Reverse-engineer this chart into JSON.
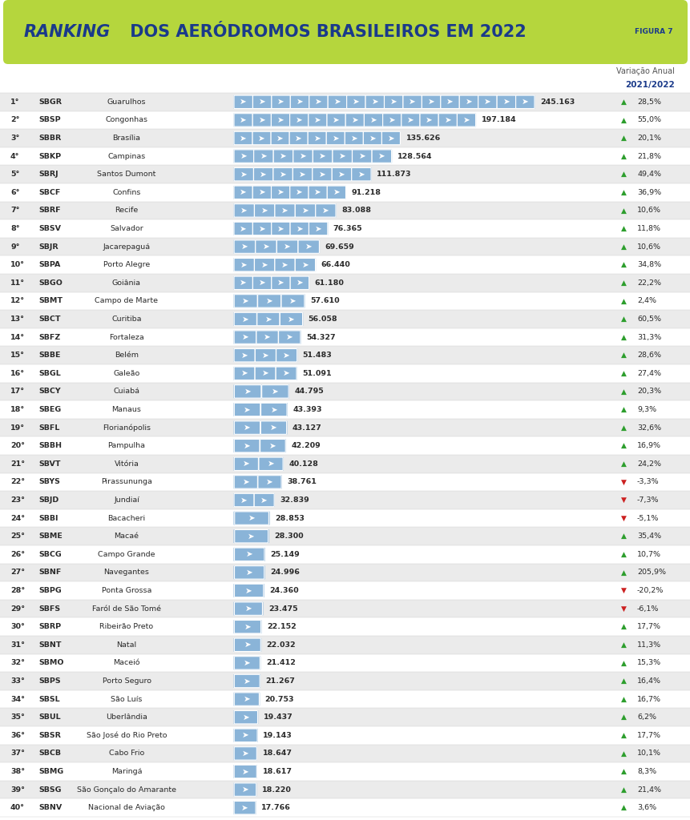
{
  "title_italic": "RANKING",
  "title_rest": "DOS AERÓDROMOS BRASILEIROS EM 2022",
  "figura": "FIGURA 7",
  "header_bg": "#b5d63d",
  "header_text_color": "#1a3a8a",
  "bg_color": "#ffffff",
  "row_alt_color": "#ebebeb",
  "row_color": "#ffffff",
  "bar_color": "#8ab4d8",
  "bar_border_color": "#ffffff",
  "var_header": "Variação Anual",
  "var_subheader": "2021/2022",
  "var_subheader_color": "#1a3a8a",
  "rows": [
    {
      "rank": "1°",
      "code": "SBGR",
      "name": "Guarulhos",
      "value": 245163,
      "val_str": "245.163",
      "var": "28,5%",
      "up": true
    },
    {
      "rank": "2°",
      "code": "SBSP",
      "name": "Congonhas",
      "value": 197184,
      "val_str": "197.184",
      "var": "55,0%",
      "up": true
    },
    {
      "rank": "3°",
      "code": "SBBR",
      "name": "Brasília",
      "value": 135626,
      "val_str": "135.626",
      "var": "20,1%",
      "up": true
    },
    {
      "rank": "4°",
      "code": "SBKP",
      "name": "Campinas",
      "value": 128564,
      "val_str": "128.564",
      "var": "21,8%",
      "up": true
    },
    {
      "rank": "5°",
      "code": "SBRJ",
      "name": "Santos Dumont",
      "value": 111873,
      "val_str": "111.873",
      "var": "49,4%",
      "up": true
    },
    {
      "rank": "6°",
      "code": "SBCF",
      "name": "Confins",
      "value": 91218,
      "val_str": "91.218",
      "var": "36,9%",
      "up": true
    },
    {
      "rank": "7°",
      "code": "SBRF",
      "name": "Recife",
      "value": 83088,
      "val_str": "83.088",
      "var": "10,6%",
      "up": true
    },
    {
      "rank": "8°",
      "code": "SBSV",
      "name": "Salvador",
      "value": 76365,
      "val_str": "76.365",
      "var": "11,8%",
      "up": true
    },
    {
      "rank": "9°",
      "code": "SBJR",
      "name": "Jacarepaguá",
      "value": 69659,
      "val_str": "69.659",
      "var": "10,6%",
      "up": true
    },
    {
      "rank": "10°",
      "code": "SBPA",
      "name": "Porto Alegre",
      "value": 66440,
      "val_str": "66.440",
      "var": "34,8%",
      "up": true
    },
    {
      "rank": "11°",
      "code": "SBGO",
      "name": "Goiânia",
      "value": 61180,
      "val_str": "61.180",
      "var": "22,2%",
      "up": true
    },
    {
      "rank": "12°",
      "code": "SBMT",
      "name": "Campo de Marte",
      "value": 57610,
      "val_str": "57.610",
      "var": "2,4%",
      "up": true
    },
    {
      "rank": "13°",
      "code": "SBCT",
      "name": "Curitiba",
      "value": 56058,
      "val_str": "56.058",
      "var": "60,5%",
      "up": true
    },
    {
      "rank": "14°",
      "code": "SBFZ",
      "name": "Fortaleza",
      "value": 54327,
      "val_str": "54.327",
      "var": "31,3%",
      "up": true
    },
    {
      "rank": "15°",
      "code": "SBBE",
      "name": "Belém",
      "value": 51483,
      "val_str": "51.483",
      "var": "28,6%",
      "up": true
    },
    {
      "rank": "16°",
      "code": "SBGL",
      "name": "Galeão",
      "value": 51091,
      "val_str": "51.091",
      "var": "27,4%",
      "up": true
    },
    {
      "rank": "17°",
      "code": "SBCY",
      "name": "Cuiabá",
      "value": 44795,
      "val_str": "44.795",
      "var": "20,3%",
      "up": true
    },
    {
      "rank": "18°",
      "code": "SBEG",
      "name": "Manaus",
      "value": 43393,
      "val_str": "43.393",
      "var": "9,3%",
      "up": true
    },
    {
      "rank": "19°",
      "code": "SBFL",
      "name": "Florianópolis",
      "value": 43127,
      "val_str": "43.127",
      "var": "32,6%",
      "up": true
    },
    {
      "rank": "20°",
      "code": "SBBH",
      "name": "Pampulha",
      "value": 42209,
      "val_str": "42.209",
      "var": "16,9%",
      "up": true
    },
    {
      "rank": "21°",
      "code": "SBVT",
      "name": "Vitória",
      "value": 40128,
      "val_str": "40.128",
      "var": "24,2%",
      "up": true
    },
    {
      "rank": "22°",
      "code": "SBYS",
      "name": "Pirassununga",
      "value": 38761,
      "val_str": "38.761",
      "var": "-3,3%",
      "up": false
    },
    {
      "rank": "23°",
      "code": "SBJD",
      "name": "Jundiaí",
      "value": 32839,
      "val_str": "32.839",
      "var": "-7,3%",
      "up": false
    },
    {
      "rank": "24°",
      "code": "SBBI",
      "name": "Bacacheri",
      "value": 28853,
      "val_str": "28.853",
      "var": "-5,1%",
      "up": false
    },
    {
      "rank": "25°",
      "code": "SBME",
      "name": "Macaé",
      "value": 28300,
      "val_str": "28.300",
      "var": "35,4%",
      "up": true
    },
    {
      "rank": "26°",
      "code": "SBCG",
      "name": "Campo Grande",
      "value": 25149,
      "val_str": "25.149",
      "var": "10,7%",
      "up": true
    },
    {
      "rank": "27°",
      "code": "SBNF",
      "name": "Navegantes",
      "value": 24996,
      "val_str": "24.996",
      "var": "205,9%",
      "up": true
    },
    {
      "rank": "28°",
      "code": "SBPG",
      "name": "Ponta Grossa",
      "value": 24360,
      "val_str": "24.360",
      "var": "-20,2%",
      "up": false
    },
    {
      "rank": "29°",
      "code": "SBFS",
      "name": "Faról de São Tomé",
      "value": 23475,
      "val_str": "23.475",
      "var": "-6,1%",
      "up": false
    },
    {
      "rank": "30°",
      "code": "SBRP",
      "name": "Ribeirão Preto",
      "value": 22152,
      "val_str": "22.152",
      "var": "17,7%",
      "up": true
    },
    {
      "rank": "31°",
      "code": "SBNT",
      "name": "Natal",
      "value": 22032,
      "val_str": "22.032",
      "var": "11,3%",
      "up": true
    },
    {
      "rank": "32°",
      "code": "SBMO",
      "name": "Maceió",
      "value": 21412,
      "val_str": "21.412",
      "var": "15,3%",
      "up": true
    },
    {
      "rank": "33°",
      "code": "SBPS",
      "name": "Porto Seguro",
      "value": 21267,
      "val_str": "21.267",
      "var": "16,4%",
      "up": true
    },
    {
      "rank": "34°",
      "code": "SBSL",
      "name": "São Luís",
      "value": 20753,
      "val_str": "20.753",
      "var": "16,7%",
      "up": true
    },
    {
      "rank": "35°",
      "code": "SBUL",
      "name": "Uberlândia",
      "value": 19437,
      "val_str": "19.437",
      "var": "6,2%",
      "up": true
    },
    {
      "rank": "36°",
      "code": "SBSR",
      "name": "São José do Rio Preto",
      "value": 19143,
      "val_str": "19.143",
      "var": "17,7%",
      "up": true
    },
    {
      "rank": "37°",
      "code": "SBCB",
      "name": "Cabo Frio",
      "value": 18647,
      "val_str": "18.647",
      "var": "10,1%",
      "up": true
    },
    {
      "rank": "38°",
      "code": "SBMG",
      "name": "Maringá",
      "value": 18617,
      "val_str": "18.617",
      "var": "8,3%",
      "up": true
    },
    {
      "rank": "39°",
      "code": "SBSG",
      "name": "São Gonçalo do Amarante",
      "value": 18220,
      "val_str": "18.220",
      "var": "21,4%",
      "up": true
    },
    {
      "rank": "40°",
      "code": "SBNV",
      "name": "Nacional de Aviação",
      "value": 17766,
      "val_str": "17.766",
      "var": "3,6%",
      "up": true
    }
  ]
}
